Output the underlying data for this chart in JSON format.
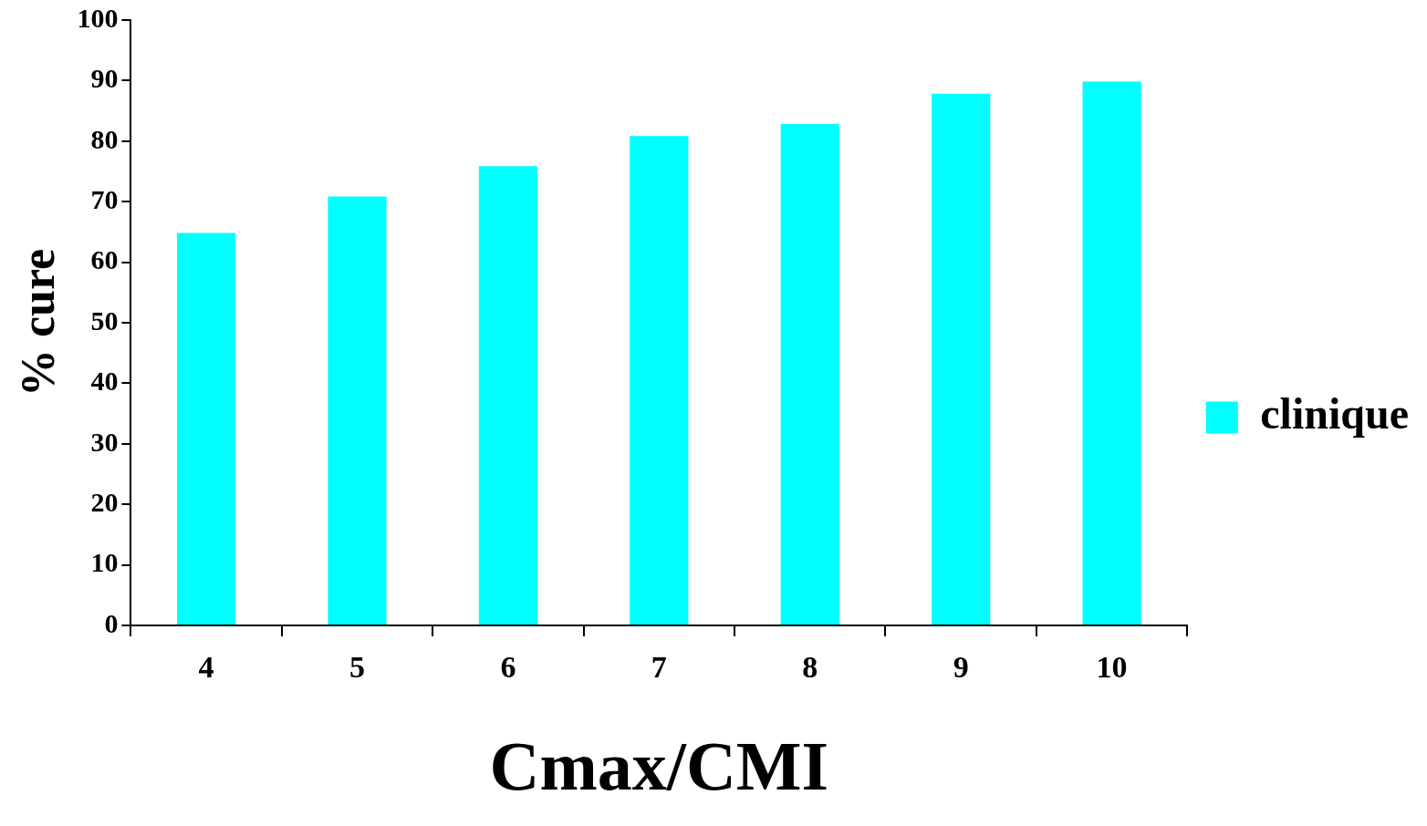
{
  "chart_data": {
    "type": "bar",
    "xlabel": "Cmax/CMI",
    "ylabel": "% cure",
    "categories": [
      "4",
      "5",
      "6",
      "7",
      "8",
      "9",
      "10"
    ],
    "series": [
      {
        "name": "clinique",
        "color": "#00ffff",
        "values": [
          65,
          71,
          76,
          81,
          83,
          88,
          90
        ]
      }
    ],
    "ylim": [
      0,
      100
    ],
    "yticks": [
      0,
      10,
      20,
      30,
      40,
      50,
      60,
      70,
      80,
      90,
      100
    ],
    "grid": false,
    "legend": "right"
  }
}
